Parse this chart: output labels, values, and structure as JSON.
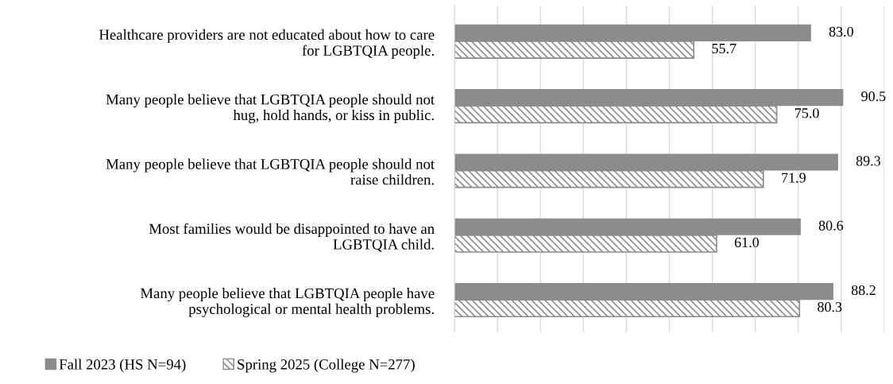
{
  "chart_data": {
    "type": "bar",
    "orientation": "horizontal",
    "categories": [
      "Healthcare providers are not educated about how to care\nfor LGBTQIA people.",
      "Many people believe that LGBTQIA people should not\nhug, hold hands, or kiss in public.",
      "Many people believe that LGBTQIA people should not\nraise children.",
      "Most families would be disappointed to have an\nLGBTQIA child.",
      "Many people believe that LGBTQIA people have\npsychological or mental health problems."
    ],
    "series": [
      {
        "name": "Fall 2023 (HS N=94)",
        "color": "#8c8c8c",
        "values": [
          83.0,
          90.5,
          89.3,
          80.6,
          88.2
        ],
        "value_labels": [
          "83.0",
          "90.5",
          "89.3",
          "80.6",
          "88.2"
        ]
      },
      {
        "name": "Spring 2025 (College N=277)",
        "color": "#8c8c8c",
        "values": [
          55.7,
          75.0,
          71.9,
          61.0,
          80.3
        ],
        "value_labels": [
          "55.7",
          "75.0",
          "71.9",
          "61.0",
          "80.3"
        ]
      }
    ],
    "xlim": [
      0,
      100
    ],
    "xticks": [
      {
        "value": 0,
        "label": null
      },
      {
        "value": 10,
        "label": null
      },
      {
        "value": 20,
        "label": null
      },
      {
        "value": 30,
        "label": null
      },
      {
        "value": 40,
        "label": null
      },
      {
        "value": 50,
        "label": null
      },
      {
        "value": 60,
        "label": null
      },
      {
        "value": 70,
        "label": null
      },
      {
        "value": 80,
        "label": null
      },
      {
        "value": 90,
        "label": null
      },
      {
        "value": 100,
        "label": null
      }
    ],
    "tick_labels": "y",
    "grid": "x",
    "legend": "bottom"
  }
}
